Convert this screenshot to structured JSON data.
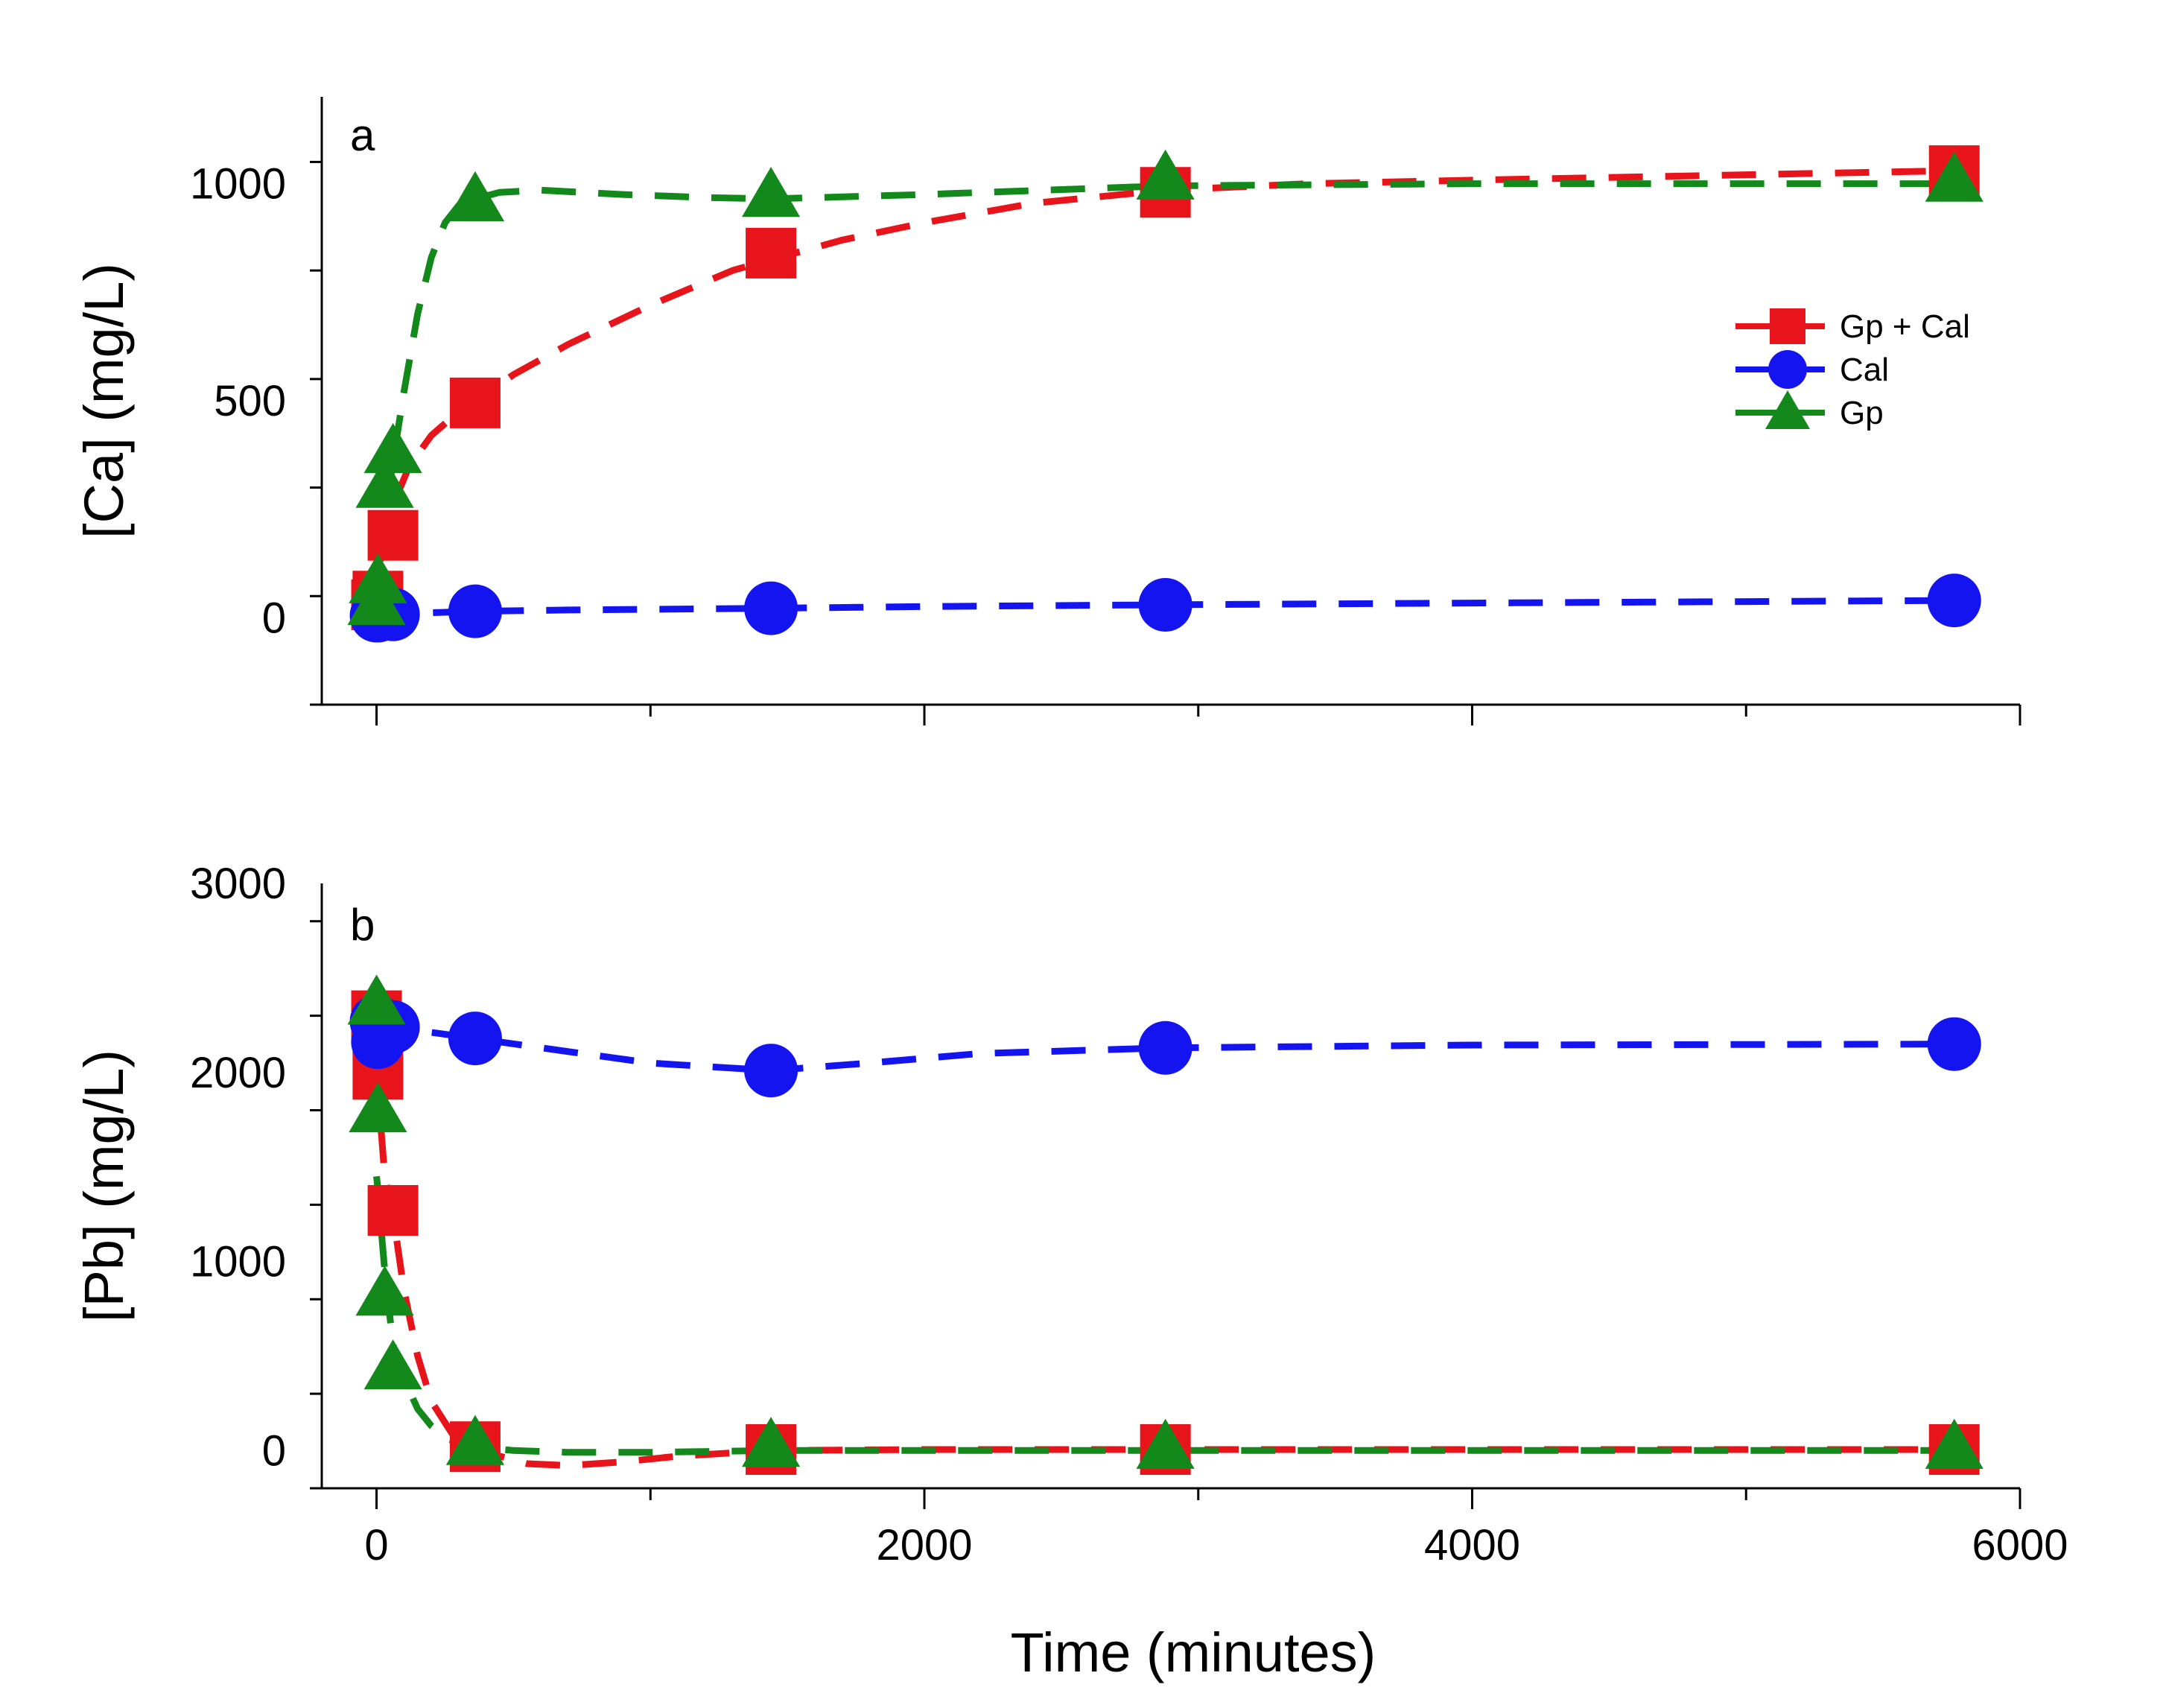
{
  "chart_data": [
    {
      "type": "scatter",
      "panel_label": "a",
      "xlabel": "Time (minutes)",
      "ylabel": "[Ca] (mg/L)",
      "xlim": [
        -200,
        6000
      ],
      "ylim": [
        -200,
        1200
      ],
      "x_ticks": [
        0,
        2000,
        4000,
        6000
      ],
      "x_tick_labels": [
        "0",
        "2000",
        "4000",
        "6000"
      ],
      "y_ticks": [
        0,
        500,
        1000
      ],
      "y_tick_labels": [
        "0",
        "500",
        "1000"
      ],
      "legend_position": "right",
      "series": [
        {
          "name": "Gp + Cal",
          "color": "#e8141b",
          "marker": "square",
          "x": [
            0,
            5,
            60,
            360,
            1440,
            2880,
            5760
          ],
          "y": [
            30,
            50,
            190,
            495,
            840,
            980,
            1030
          ],
          "fit_x": [
            0,
            30,
            60,
            120,
            200,
            300,
            360,
            500,
            700,
            1000,
            1300,
            1440,
            1700,
            2000,
            2400,
            2880,
            3400,
            4000,
            4800,
            5760
          ],
          "fit_y": [
            20,
            170,
            260,
            350,
            420,
            475,
            500,
            560,
            630,
            720,
            800,
            825,
            870,
            910,
            955,
            985,
            1000,
            1008,
            1018,
            1030
          ]
        },
        {
          "name": "Cal",
          "color": "#1414f0",
          "marker": "circle",
          "x": [
            0,
            5,
            60,
            360,
            1440,
            2880,
            5760
          ],
          "y": [
            5,
            5,
            8,
            15,
            22,
            30,
            40
          ],
          "fit_x": [
            0,
            60,
            360,
            700,
            1440,
            2000,
            2880,
            4000,
            5760
          ],
          "fit_y": [
            5,
            9,
            15,
            18,
            22,
            26,
            30,
            34,
            40
          ]
        },
        {
          "name": "Gp",
          "color": "#12891a",
          "marker": "triangle",
          "x": [
            0,
            5,
            30,
            60,
            360,
            1440,
            2880,
            5760
          ],
          "y": [
            30,
            80,
            300,
            380,
            960,
            970,
            1010,
            1005
          ],
          "fit_x": [
            0,
            20,
            60,
            100,
            150,
            200,
            250,
            300,
            360,
            450,
            600,
            900,
            1200,
            1440,
            2000,
            2880,
            4000,
            5760
          ],
          "fit_y": [
            0,
            180,
            360,
            520,
            700,
            830,
            910,
            950,
            965,
            980,
            985,
            975,
            968,
            965,
            975,
            995,
            1000,
            1000
          ]
        }
      ]
    },
    {
      "type": "scatter",
      "panel_label": "b",
      "xlabel": "Time (minutes)",
      "ylabel": "[Pb] (mg/L)",
      "xlim": [
        -200,
        6000
      ],
      "ylim": [
        -200,
        3000
      ],
      "x_ticks": [
        0,
        2000,
        4000,
        6000
      ],
      "x_tick_labels": [
        "0",
        "2000",
        "4000",
        "6000"
      ],
      "y_ticks": [
        0,
        1000,
        2000,
        3000
      ],
      "y_tick_labels": [
        "0",
        "1000",
        "2000",
        "3000"
      ],
      "series": [
        {
          "name": "Gp + Cal",
          "color": "#e8141b",
          "marker": "square",
          "x": [
            0,
            5,
            60,
            360,
            1440,
            2880,
            5760
          ],
          "y": [
            2300,
            1990,
            1270,
            20,
            5,
            5,
            5
          ],
          "fit_x": [
            0,
            30,
            60,
            100,
            150,
            200,
            280,
            360,
            450,
            550,
            700,
            900,
            1100,
            1440,
            2000,
            2880,
            4000,
            5760
          ],
          "fit_y": [
            2000,
            1450,
            1250,
            850,
            500,
            260,
            80,
            20,
            -30,
            -70,
            -80,
            -60,
            -30,
            0,
            5,
            5,
            5,
            5
          ]
        },
        {
          "name": "Cal",
          "color": "#1414f0",
          "marker": "circle",
          "x": [
            0,
            5,
            60,
            360,
            1440,
            2880,
            5760
          ],
          "y": [
            2270,
            2160,
            2240,
            2180,
            2010,
            2130,
            2150
          ],
          "fit_x": [
            0,
            60,
            360,
            700,
            1000,
            1440,
            1800,
            2200,
            2880,
            4000,
            5760
          ],
          "fit_y": [
            2270,
            2240,
            2180,
            2110,
            2050,
            2010,
            2050,
            2100,
            2130,
            2145,
            2150
          ]
        },
        {
          "name": "Gp",
          "color": "#12891a",
          "marker": "triangle",
          "x": [
            0,
            5,
            30,
            60,
            360,
            1440,
            2880,
            5760
          ],
          "y": [
            2360,
            1790,
            820,
            430,
            30,
            20,
            10,
            10
          ],
          "fit_x": [
            0,
            5,
            15,
            30,
            60,
            100,
            150,
            200,
            260,
            360,
            500,
            700,
            1000,
            1440,
            2000,
            2880,
            4000,
            5760
          ],
          "fit_y": [
            1450,
            1380,
            1200,
            950,
            560,
            380,
            220,
            130,
            60,
            20,
            0,
            -10,
            -10,
            0,
            0,
            0,
            0,
            0
          ]
        }
      ]
    }
  ]
}
